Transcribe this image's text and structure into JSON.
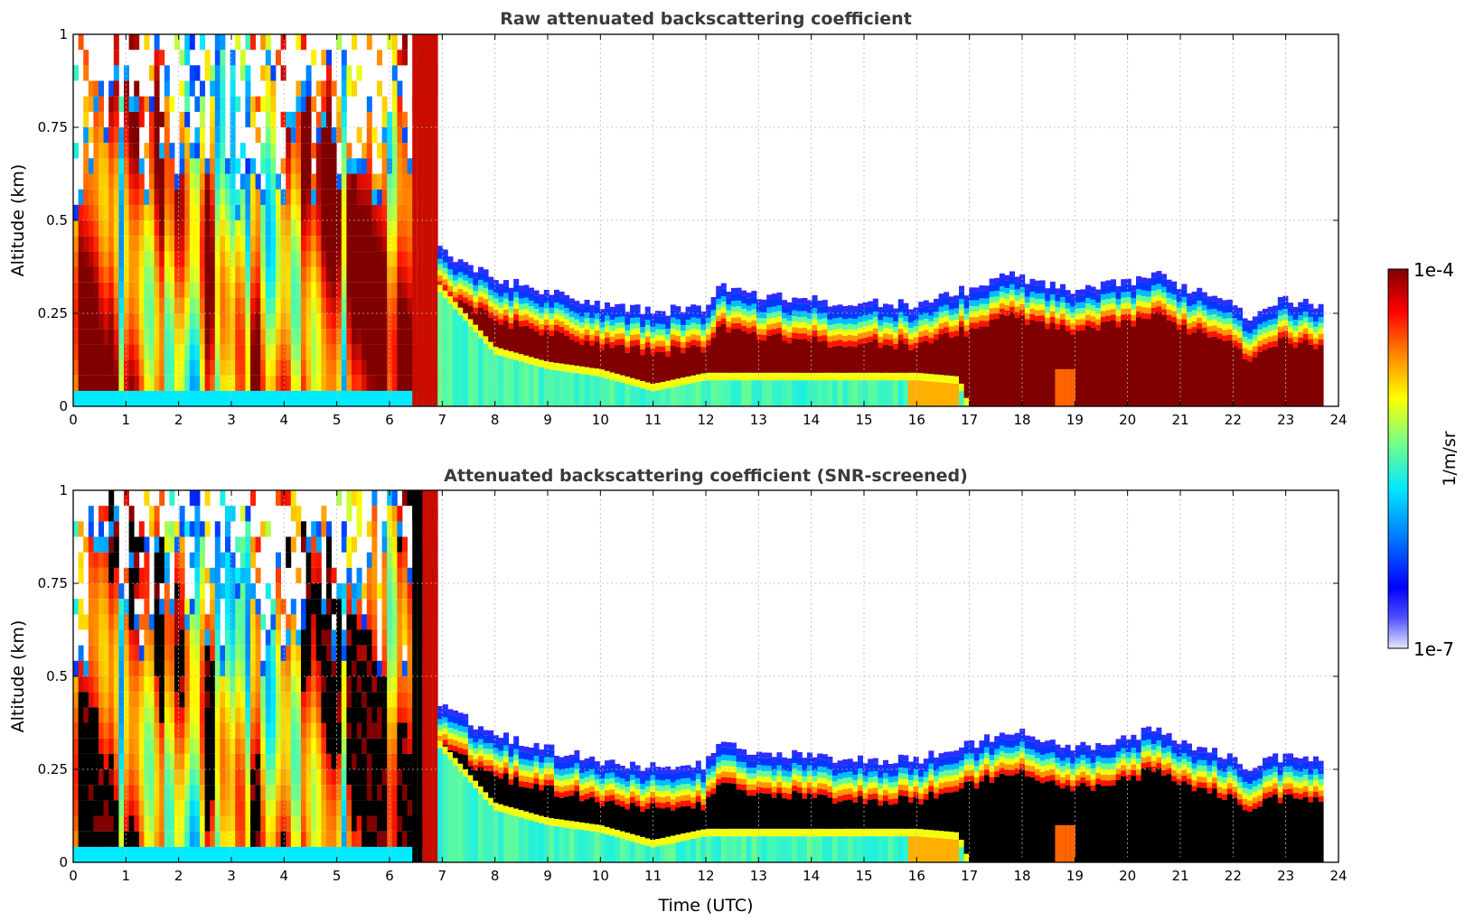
{
  "chart_data": [
    {
      "type": "heatmap",
      "title": "Raw attenuated backscattering coefficient",
      "xlabel": "",
      "ylabel": "Altitude (km)",
      "xlim": [
        0,
        24
      ],
      "ylim": [
        0,
        1
      ],
      "xticks": [
        "0",
        "1",
        "2",
        "3",
        "4",
        "5",
        "6",
        "7",
        "8",
        "9",
        "10",
        "11",
        "12",
        "13",
        "14",
        "15",
        "16",
        "17",
        "18",
        "19",
        "20",
        "21",
        "22",
        "23",
        "24"
      ],
      "yticks": [
        "0",
        "0.25",
        "0.5",
        "0.75",
        "1"
      ],
      "grid": true,
      "screened": false
    },
    {
      "type": "heatmap",
      "title": "Attenuated backscattering coefficient (SNR-screened)",
      "xlabel": "Time (UTC)",
      "ylabel": "Altitude (km)",
      "xlim": [
        0,
        24
      ],
      "ylim": [
        0,
        1
      ],
      "xticks": [
        "0",
        "1",
        "2",
        "3",
        "4",
        "5",
        "6",
        "7",
        "8",
        "9",
        "10",
        "11",
        "12",
        "13",
        "14",
        "15",
        "16",
        "17",
        "18",
        "19",
        "20",
        "21",
        "22",
        "23",
        "24"
      ],
      "yticks": [
        "0",
        "0.25",
        "0.5",
        "0.75",
        "1"
      ],
      "grid": true,
      "screened": true
    }
  ],
  "colorbar": {
    "label": "1/m/sr",
    "max_label": "1e-4",
    "min_label": "1e-7",
    "colormap": "jet"
  }
}
